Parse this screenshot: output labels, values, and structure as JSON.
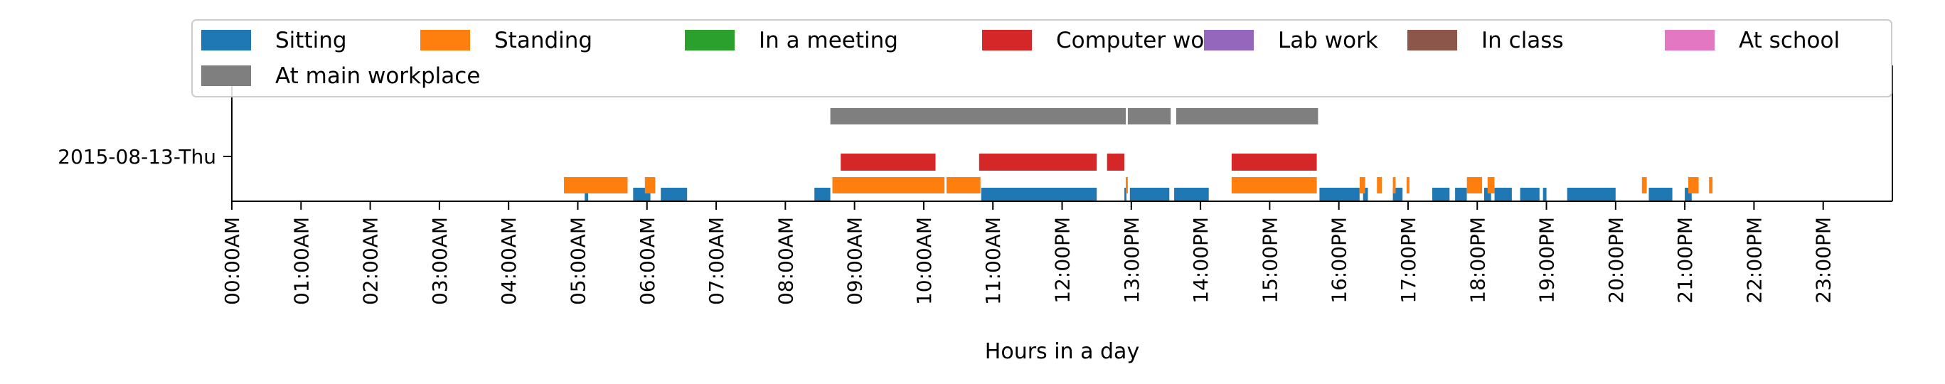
{
  "chart_data": {
    "type": "timeline",
    "xlabel": "Hours in a day",
    "xlim": [
      0,
      24
    ],
    "x_ticks": [
      {
        "value": 0,
        "label": "00:00AM"
      },
      {
        "value": 1,
        "label": "01:00AM"
      },
      {
        "value": 2,
        "label": "02:00AM"
      },
      {
        "value": 3,
        "label": "03:00AM"
      },
      {
        "value": 4,
        "label": "04:00AM"
      },
      {
        "value": 5,
        "label": "05:00AM"
      },
      {
        "value": 6,
        "label": "06:00AM"
      },
      {
        "value": 7,
        "label": "07:00AM"
      },
      {
        "value": 8,
        "label": "08:00AM"
      },
      {
        "value": 9,
        "label": "09:00AM"
      },
      {
        "value": 10,
        "label": "10:00AM"
      },
      {
        "value": 11,
        "label": "11:00AM"
      },
      {
        "value": 12,
        "label": "12:00PM"
      },
      {
        "value": 13,
        "label": "13:00PM"
      },
      {
        "value": 14,
        "label": "14:00PM"
      },
      {
        "value": 15,
        "label": "15:00PM"
      },
      {
        "value": 16,
        "label": "16:00PM"
      },
      {
        "value": 17,
        "label": "17:00PM"
      },
      {
        "value": 18,
        "label": "18:00PM"
      },
      {
        "value": 19,
        "label": "19:00PM"
      },
      {
        "value": 20,
        "label": "20:00PM"
      },
      {
        "value": 21,
        "label": "21:00PM"
      },
      {
        "value": 22,
        "label": "22:00PM"
      },
      {
        "value": 23,
        "label": "23:00PM"
      }
    ],
    "y_category": "2015-08-13-Thu",
    "legend_position": "top",
    "series": [
      {
        "name": "Sitting",
        "color": "#1f77b4",
        "intervals": [
          [
            5.1,
            5.15
          ],
          [
            5.8,
            6.05
          ],
          [
            6.2,
            6.58
          ],
          [
            8.42,
            8.65
          ],
          [
            10.83,
            12.5
          ],
          [
            12.9,
            12.93
          ],
          [
            12.98,
            13.55
          ],
          [
            13.62,
            14.12
          ],
          [
            15.72,
            16.3
          ],
          [
            16.35,
            16.42
          ],
          [
            16.78,
            16.92
          ],
          [
            17.35,
            17.6
          ],
          [
            17.68,
            17.85
          ],
          [
            18.1,
            18.2
          ],
          [
            18.25,
            18.5
          ],
          [
            18.62,
            18.9
          ],
          [
            18.95,
            19.0
          ],
          [
            19.3,
            20.0
          ],
          [
            20.48,
            20.82
          ],
          [
            21.0,
            21.1
          ]
        ]
      },
      {
        "name": "Standing",
        "color": "#ff7f0e",
        "intervals": [
          [
            4.8,
            5.72
          ],
          [
            5.97,
            6.12
          ],
          [
            8.68,
            10.3
          ],
          [
            10.33,
            10.82
          ],
          [
            12.92,
            12.95
          ],
          [
            14.45,
            15.68
          ],
          [
            16.3,
            16.38
          ],
          [
            16.55,
            16.62
          ],
          [
            16.78,
            16.82
          ],
          [
            16.98,
            17.02
          ],
          [
            17.85,
            18.07
          ],
          [
            18.15,
            18.25
          ],
          [
            20.38,
            20.45
          ],
          [
            21.05,
            21.2
          ],
          [
            21.35,
            21.4
          ]
        ]
      },
      {
        "name": "In a meeting",
        "color": "#2ca02c",
        "intervals": []
      },
      {
        "name": "Computer work",
        "color": "#d62728",
        "intervals": [
          [
            8.8,
            10.17
          ],
          [
            10.8,
            12.5
          ],
          [
            12.65,
            12.9
          ],
          [
            14.45,
            15.68
          ]
        ]
      },
      {
        "name": "Lab work",
        "color": "#9467bd",
        "intervals": []
      },
      {
        "name": "In class",
        "color": "#8c564b",
        "intervals": []
      },
      {
        "name": "At school",
        "color": "#e377c2",
        "intervals": []
      },
      {
        "name": "At main workplace",
        "color": "#7f7f7f",
        "intervals": [
          [
            8.65,
            12.92
          ],
          [
            12.95,
            13.57
          ],
          [
            13.65,
            15.7
          ]
        ]
      }
    ]
  }
}
